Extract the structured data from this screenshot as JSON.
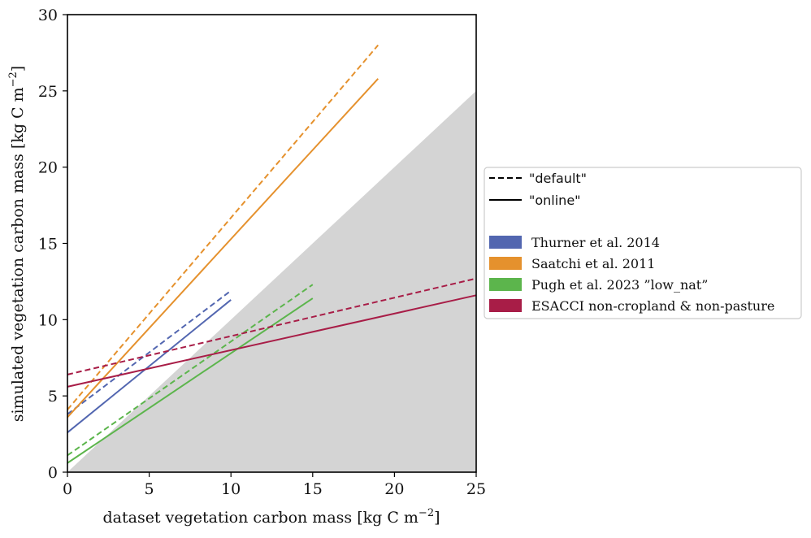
{
  "chart_data": {
    "type": "line",
    "xlabel": "dataset vegetation carbon mass [kg C m",
    "xlabel_sup": "−2",
    "xlabel_end": "]",
    "ylabel": "simulated vegetation carbon mass [kg C m",
    "ylabel_sup": "−2",
    "ylabel_end": "]",
    "xlim": [
      0,
      25
    ],
    "ylim": [
      0,
      30
    ],
    "xticks": [
      "0",
      "5",
      "10",
      "15",
      "20",
      "25"
    ],
    "yticks": [
      "0",
      "5",
      "10",
      "15",
      "20",
      "25",
      "30"
    ],
    "grid": false,
    "legend_position": "right",
    "shaded_region": {
      "description_free": true,
      "polygon": [
        [
          0,
          0
        ],
        [
          25,
          0
        ],
        [
          25,
          25
        ]
      ],
      "color": "#d4d4d4"
    },
    "line_styles": [
      {
        "name": "\"default\"",
        "dash": "dashed"
      },
      {
        "name": "\"online\"",
        "dash": "solid"
      }
    ],
    "series": [
      {
        "name": "Thurner et al. 2014",
        "color": "#5266b0",
        "style": "dashed",
        "x": [
          0,
          10
        ],
        "y": [
          3.8,
          11.9
        ]
      },
      {
        "name": "Thurner et al. 2014",
        "color": "#5266b0",
        "style": "solid",
        "x": [
          0,
          10
        ],
        "y": [
          2.6,
          11.3
        ]
      },
      {
        "name": "Saatchi et al. 2011",
        "color": "#e5912d",
        "style": "dashed",
        "x": [
          0,
          19
        ],
        "y": [
          4.1,
          28.0
        ]
      },
      {
        "name": "Saatchi et al. 2011",
        "color": "#e5912d",
        "style": "solid",
        "x": [
          0,
          19
        ],
        "y": [
          3.6,
          25.8
        ]
      },
      {
        "name": "Pugh et al. 2023 \"low_nat\"",
        "color": "#5cb54c",
        "style": "dashed",
        "x": [
          0,
          15
        ],
        "y": [
          1.1,
          12.3
        ]
      },
      {
        "name": "Pugh et al. 2023 \"low_nat\"",
        "color": "#5cb54c",
        "style": "solid",
        "x": [
          0,
          15
        ],
        "y": [
          0.6,
          11.4
        ]
      },
      {
        "name": "ESACCI non-cropland & non-pasture",
        "color": "#a81d47",
        "style": "dashed",
        "x": [
          0,
          25
        ],
        "y": [
          6.4,
          12.7
        ]
      },
      {
        "name": "ESACCI non-cropland & non-pasture",
        "color": "#a81d47",
        "style": "solid",
        "x": [
          0,
          25
        ],
        "y": [
          5.6,
          11.6
        ]
      }
    ],
    "legend": {
      "style_entries": [
        "\"default\"",
        "\"online\""
      ],
      "color_entries": [
        {
          "label": "Thurner et al. 2014",
          "color": "#5266b0"
        },
        {
          "label": "Saatchi et al. 2011",
          "color": "#e5912d"
        },
        {
          "label": "Pugh et al. 2023 ”low_nat”",
          "color": "#5cb54c"
        },
        {
          "label": "ESACCI non-cropland & non-pasture",
          "color": "#a81d47"
        }
      ]
    }
  }
}
